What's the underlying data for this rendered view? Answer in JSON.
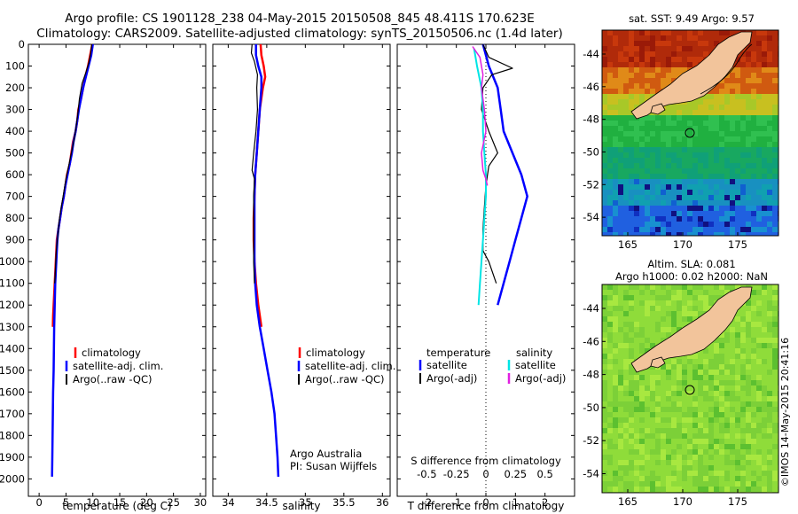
{
  "header": {
    "title_line1": "Argo profile: CS 1901128_238 04-May-2015 20150508_845 48.411S 170.623E",
    "title_line2": "Climatology: CARS2009. Satellite-adjusted climatology: synTS_20150506.nc (1.4d later)"
  },
  "colors": {
    "climatology": "#ff0000",
    "satellite": "#0000ff",
    "argo": "#000000",
    "salinity_sat": "#00e5e5",
    "salinity_argo": "#e020e0"
  },
  "chart_data": [
    {
      "type": "line",
      "name": "temperature",
      "xlabel": "temperature (deg C)",
      "xlim": [
        -2,
        31
      ],
      "ylim": [
        2080,
        0
      ],
      "xticks": [
        "0",
        "5",
        "10",
        "15",
        "20",
        "25",
        "30"
      ],
      "yticks": [
        "0",
        "100",
        "200",
        "300",
        "400",
        "500",
        "600",
        "700",
        "800",
        "900",
        "1000",
        "1100",
        "1200",
        "1300",
        "1400",
        "1500",
        "1600",
        "1700",
        "1800",
        "1900",
        "2000"
      ],
      "legend": [
        "climatology",
        "satellite-adj. clim.",
        "Argo(..raw -QC)"
      ],
      "series": [
        {
          "name": "climatology",
          "color": "#ff0000",
          "width": 2.5,
          "points": [
            [
              9.9,
              0
            ],
            [
              9.5,
              50
            ],
            [
              9.1,
              100
            ],
            [
              8.6,
              150
            ],
            [
              8.2,
              200
            ],
            [
              7.8,
              250
            ],
            [
              7.3,
              300
            ],
            [
              7.1,
              350
            ],
            [
              6.8,
              400
            ],
            [
              6.3,
              450
            ],
            [
              6.0,
              500
            ],
            [
              5.7,
              550
            ],
            [
              5.2,
              600
            ],
            [
              4.9,
              650
            ],
            [
              4.6,
              700
            ],
            [
              4.2,
              750
            ],
            [
              3.9,
              800
            ],
            [
              3.6,
              850
            ],
            [
              3.3,
              900
            ],
            [
              3.2,
              950
            ],
            [
              3.1,
              1000
            ],
            [
              3.0,
              1050
            ],
            [
              2.9,
              1100
            ],
            [
              2.8,
              1150
            ],
            [
              2.7,
              1200
            ],
            [
              2.6,
              1250
            ],
            [
              2.55,
              1300
            ]
          ]
        },
        {
          "name": "satellite",
          "color": "#0000ff",
          "width": 2.5,
          "points": [
            [
              10.0,
              0
            ],
            [
              9.7,
              50
            ],
            [
              9.2,
              100
            ],
            [
              8.7,
              150
            ],
            [
              8.2,
              200
            ],
            [
              7.8,
              250
            ],
            [
              7.4,
              300
            ],
            [
              7.1,
              350
            ],
            [
              6.8,
              400
            ],
            [
              6.4,
              450
            ],
            [
              6.1,
              500
            ],
            [
              5.7,
              550
            ],
            [
              5.3,
              600
            ],
            [
              4.9,
              650
            ],
            [
              4.6,
              700
            ],
            [
              4.2,
              750
            ],
            [
              3.9,
              800
            ],
            [
              3.6,
              850
            ],
            [
              3.4,
              900
            ],
            [
              3.2,
              1000
            ],
            [
              3.0,
              1100
            ],
            [
              2.9,
              1200
            ],
            [
              2.8,
              1300
            ],
            [
              2.75,
              1400
            ],
            [
              2.7,
              1500
            ],
            [
              2.6,
              1600
            ],
            [
              2.55,
              1700
            ],
            [
              2.5,
              1800
            ],
            [
              2.45,
              1900
            ],
            [
              2.4,
              1990
            ]
          ]
        },
        {
          "name": "Argo",
          "color": "#000000",
          "width": 1.2,
          "points": [
            [
              9.8,
              0
            ],
            [
              9.6,
              40
            ],
            [
              9.3,
              80
            ],
            [
              8.7,
              130
            ],
            [
              8.0,
              180
            ],
            [
              7.5,
              250
            ],
            [
              7.2,
              320
            ],
            [
              6.9,
              380
            ],
            [
              6.5,
              440
            ],
            [
              6.0,
              500
            ],
            [
              5.5,
              560
            ],
            [
              5.0,
              620
            ],
            [
              4.6,
              680
            ],
            [
              4.2,
              740
            ],
            [
              3.8,
              800
            ],
            [
              3.6,
              850
            ],
            [
              3.4,
              900
            ],
            [
              3.2,
              950
            ],
            [
              3.1,
              1000
            ],
            [
              3.0,
              1060
            ],
            [
              2.9,
              1100
            ]
          ]
        }
      ]
    },
    {
      "type": "line",
      "name": "salinity",
      "xlabel": "salinity",
      "xlim": [
        33.8,
        36.1
      ],
      "ylim": [
        2080,
        0
      ],
      "xticks": [
        "34",
        "34.5",
        "35",
        "35.5",
        "36"
      ],
      "legend": [
        "climatology",
        "satellite-adj. clim.",
        "Argo(..raw -QC)"
      ],
      "annotation": [
        "Argo Australia",
        "PI: Susan Wijffels"
      ],
      "series": [
        {
          "name": "climatology",
          "color": "#ff0000",
          "width": 2.5,
          "points": [
            [
              34.42,
              0
            ],
            [
              34.43,
              50
            ],
            [
              34.46,
              100
            ],
            [
              34.48,
              150
            ],
            [
              34.45,
              200
            ],
            [
              34.41,
              300
            ],
            [
              34.39,
              400
            ],
            [
              34.37,
              500
            ],
            [
              34.35,
              600
            ],
            [
              34.34,
              700
            ],
            [
              34.33,
              800
            ],
            [
              34.33,
              900
            ],
            [
              34.34,
              1000
            ],
            [
              34.36,
              1100
            ],
            [
              34.39,
              1200
            ],
            [
              34.43,
              1300
            ]
          ]
        },
        {
          "name": "satellite",
          "color": "#0000ff",
          "width": 2.5,
          "points": [
            [
              34.36,
              0
            ],
            [
              34.36,
              50
            ],
            [
              34.39,
              100
            ],
            [
              34.43,
              150
            ],
            [
              34.43,
              200
            ],
            [
              34.41,
              300
            ],
            [
              34.39,
              400
            ],
            [
              34.37,
              500
            ],
            [
              34.35,
              600
            ],
            [
              34.34,
              700
            ],
            [
              34.34,
              800
            ],
            [
              34.34,
              900
            ],
            [
              34.34,
              1000
            ],
            [
              34.35,
              1100
            ],
            [
              34.37,
              1200
            ],
            [
              34.41,
              1300
            ],
            [
              34.46,
              1400
            ],
            [
              34.51,
              1500
            ],
            [
              34.56,
              1600
            ],
            [
              34.6,
              1700
            ],
            [
              34.62,
              1800
            ],
            [
              34.64,
              1900
            ],
            [
              34.65,
              1990
            ]
          ]
        },
        {
          "name": "Argo",
          "color": "#000000",
          "width": 1.2,
          "points": [
            [
              34.31,
              0
            ],
            [
              34.3,
              40
            ],
            [
              34.34,
              80
            ],
            [
              34.38,
              140
            ],
            [
              34.37,
              200
            ],
            [
              34.38,
              300
            ],
            [
              34.36,
              400
            ],
            [
              34.33,
              500
            ],
            [
              34.31,
              580
            ],
            [
              34.34,
              620
            ],
            [
              34.33,
              700
            ],
            [
              34.33,
              800
            ],
            [
              34.33,
              900
            ],
            [
              34.33,
              1000
            ],
            [
              34.34,
              1100
            ]
          ]
        }
      ]
    },
    {
      "type": "line",
      "name": "difference",
      "xlabel": "T difference from climatology",
      "xlabel2": "S difference from climatology",
      "xlim": [
        -3,
        3
      ],
      "ylim": [
        2080,
        0
      ],
      "xticks": [
        "-2",
        "-1",
        "0",
        "1",
        "2"
      ],
      "xticks_top": [
        "-0.5",
        "-0.25",
        "0",
        "0.25",
        "0.5"
      ],
      "legend_headers": [
        "temperature",
        "salinity"
      ],
      "legend": [
        "satellite",
        "Argo(-adj)",
        "satellite",
        "Argo(-adj)"
      ],
      "series": [
        {
          "name": "T satellite",
          "color": "#0000ff",
          "width": 2.5,
          "points": [
            [
              -0.1,
              0
            ],
            [
              0.1,
              100
            ],
            [
              0.4,
              200
            ],
            [
              0.5,
              300
            ],
            [
              0.6,
              400
            ],
            [
              0.9,
              500
            ],
            [
              1.2,
              600
            ],
            [
              1.4,
              700
            ],
            [
              1.2,
              800
            ],
            [
              1.0,
              900
            ],
            [
              0.8,
              1000
            ],
            [
              0.6,
              1100
            ],
            [
              0.4,
              1200
            ]
          ]
        },
        {
          "name": "T Argo",
          "color": "#000000",
          "width": 1.2,
          "points": [
            [
              -0.1,
              0
            ],
            [
              0.1,
              60
            ],
            [
              0.9,
              110
            ],
            [
              0.2,
              140
            ],
            [
              -0.1,
              200
            ],
            [
              -0.15,
              300
            ],
            [
              0.1,
              400
            ],
            [
              0.4,
              500
            ],
            [
              0.1,
              560
            ],
            [
              0.0,
              650
            ],
            [
              -0.05,
              750
            ],
            [
              -0.1,
              850
            ],
            [
              -0.1,
              950
            ],
            [
              0.1,
              1000
            ],
            [
              0.35,
              1100
            ]
          ]
        },
        {
          "name": "S satellite",
          "color": "#00e5e5",
          "width": 2.0,
          "points": [
            [
              -0.4,
              20
            ],
            [
              -0.3,
              100
            ],
            [
              -0.15,
              200
            ],
            [
              -0.1,
              300
            ],
            [
              -0.1,
              400
            ],
            [
              -0.05,
              500
            ],
            [
              0.0,
              600
            ],
            [
              0.0,
              700
            ],
            [
              -0.05,
              800
            ],
            [
              -0.1,
              900
            ],
            [
              -0.15,
              1000
            ],
            [
              -0.2,
              1100
            ],
            [
              -0.25,
              1200
            ]
          ]
        },
        {
          "name": "S Argo",
          "color": "#e020e0",
          "width": 1.5,
          "points": [
            [
              -0.45,
              10
            ],
            [
              -0.2,
              60
            ],
            [
              -0.1,
              140
            ],
            [
              -0.15,
              200
            ],
            [
              -0.05,
              300
            ],
            [
              0.0,
              400
            ],
            [
              -0.15,
              500
            ],
            [
              -0.1,
              580
            ],
            [
              0.0,
              620
            ],
            [
              0.05,
              650
            ]
          ]
        }
      ]
    },
    {
      "type": "heatmap",
      "name": "sst_map",
      "title": "sat. SST: 9.49 Argo: 9.57",
      "xticks": [
        "165",
        "170",
        "175"
      ],
      "yticks": [
        "-44",
        "-46",
        "-48",
        "-50",
        "-52",
        "-54"
      ]
    },
    {
      "type": "heatmap",
      "name": "sla_map",
      "title_line1": "Altim. SLA: 0.081",
      "title_line2": "Argo h1000: 0.02 h2000: NaN",
      "xticks": [
        "165",
        "170",
        "175"
      ],
      "yticks": [
        "-44",
        "-46",
        "-48",
        "-50",
        "-52",
        "-54"
      ]
    }
  ],
  "credit": "©IMOS 14-May-2015 20:41:16"
}
